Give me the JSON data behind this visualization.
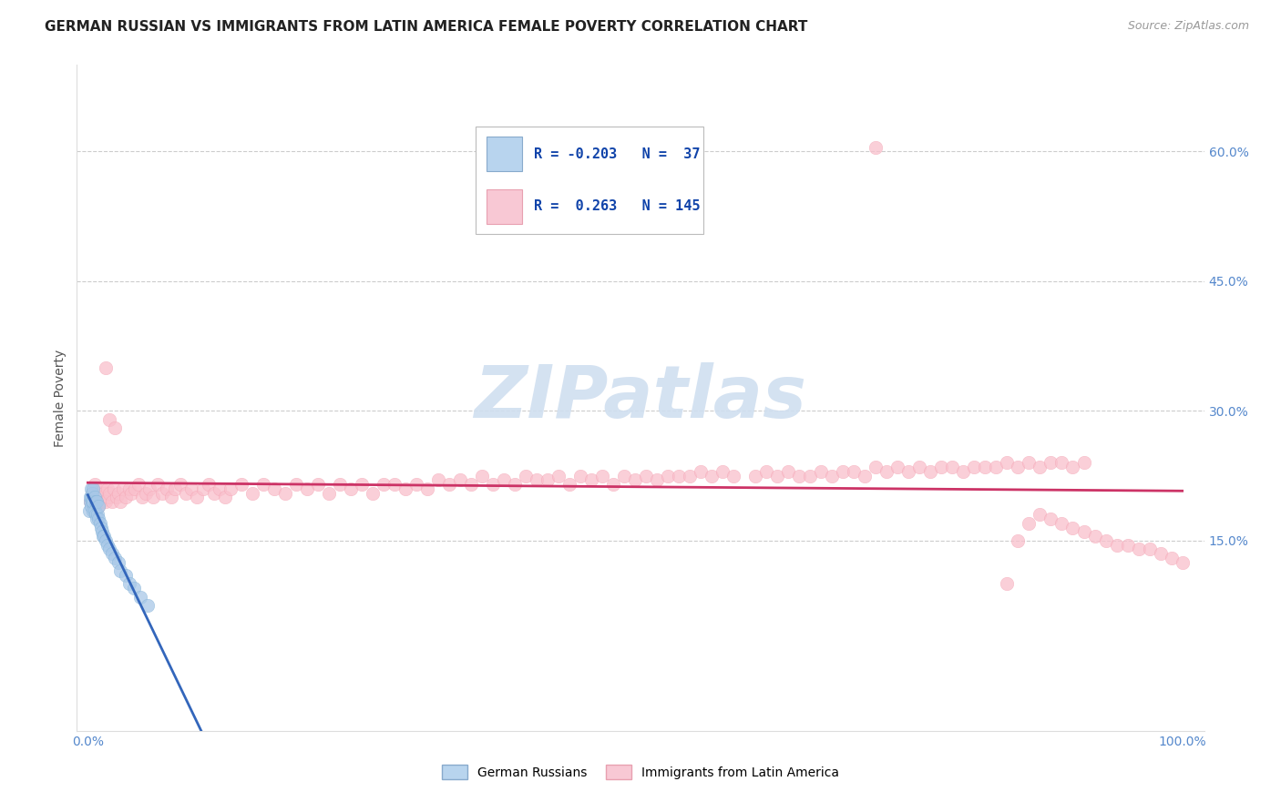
{
  "title": "GERMAN RUSSIAN VS IMMIGRANTS FROM LATIN AMERICA FEMALE POVERTY CORRELATION CHART",
  "source": "Source: ZipAtlas.com",
  "ylabel": "Female Poverty",
  "R_blue": -0.203,
  "N_blue": 37,
  "R_pink": 0.263,
  "N_pink": 145,
  "blue_color": "#7bafd4",
  "pink_color": "#f4a0b0",
  "blue_scatter_fill": "#a8c8e8",
  "pink_scatter_fill": "#f9c0cc",
  "trend_blue_solid": "#3366bb",
  "trend_blue_dash": "#88aadd",
  "trend_pink": "#cc3366",
  "legend_blue_fill": "#b8d4ee",
  "legend_pink_fill": "#f8c8d4",
  "legend_blue_edge": "#88aacc",
  "legend_pink_edge": "#e8a0b0",
  "grid_color": "#cccccc",
  "ytick_color": "#5588cc",
  "xtick_color": "#5588cc",
  "background_color": "#ffffff",
  "legend_blue_label": "German Russians",
  "legend_pink_label": "Immigrants from Latin America",
  "watermark_color": "#d0dff0",
  "blue_x": [
    0.001,
    0.002,
    0.002,
    0.003,
    0.003,
    0.003,
    0.004,
    0.004,
    0.005,
    0.005,
    0.005,
    0.006,
    0.006,
    0.007,
    0.007,
    0.008,
    0.008,
    0.009,
    0.01,
    0.01,
    0.011,
    0.012,
    0.013,
    0.014,
    0.015,
    0.016,
    0.018,
    0.02,
    0.022,
    0.025,
    0.028,
    0.03,
    0.035,
    0.038,
    0.042,
    0.048,
    0.055
  ],
  "blue_y": [
    0.185,
    0.195,
    0.2,
    0.19,
    0.2,
    0.21,
    0.195,
    0.205,
    0.185,
    0.195,
    0.21,
    0.185,
    0.2,
    0.18,
    0.195,
    0.175,
    0.195,
    0.18,
    0.175,
    0.19,
    0.17,
    0.165,
    0.16,
    0.155,
    0.155,
    0.15,
    0.145,
    0.14,
    0.135,
    0.13,
    0.125,
    0.115,
    0.11,
    0.1,
    0.095,
    0.085,
    0.075
  ],
  "pink_x": [
    0.002,
    0.004,
    0.005,
    0.006,
    0.007,
    0.008,
    0.009,
    0.01,
    0.011,
    0.012,
    0.013,
    0.014,
    0.015,
    0.016,
    0.018,
    0.019,
    0.02,
    0.022,
    0.024,
    0.026,
    0.028,
    0.03,
    0.032,
    0.035,
    0.038,
    0.04,
    0.043,
    0.046,
    0.05,
    0.053,
    0.056,
    0.06,
    0.064,
    0.068,
    0.072,
    0.076,
    0.08,
    0.085,
    0.09,
    0.095,
    0.1,
    0.105,
    0.11,
    0.115,
    0.12,
    0.125,
    0.13,
    0.14,
    0.15,
    0.16,
    0.17,
    0.18,
    0.19,
    0.2,
    0.21,
    0.22,
    0.23,
    0.24,
    0.25,
    0.26,
    0.27,
    0.28,
    0.29,
    0.3,
    0.31,
    0.32,
    0.33,
    0.34,
    0.35,
    0.36,
    0.37,
    0.38,
    0.39,
    0.4,
    0.41,
    0.42,
    0.43,
    0.44,
    0.45,
    0.46,
    0.47,
    0.48,
    0.49,
    0.5,
    0.51,
    0.52,
    0.53,
    0.54,
    0.55,
    0.56,
    0.57,
    0.58,
    0.59,
    0.61,
    0.62,
    0.63,
    0.64,
    0.65,
    0.66,
    0.67,
    0.68,
    0.69,
    0.7,
    0.71,
    0.72,
    0.73,
    0.74,
    0.75,
    0.76,
    0.77,
    0.78,
    0.79,
    0.8,
    0.81,
    0.82,
    0.83,
    0.84,
    0.85,
    0.86,
    0.87,
    0.88,
    0.89,
    0.9,
    0.91,
    0.84,
    0.85,
    0.86,
    0.87,
    0.88,
    0.89,
    0.9,
    0.91,
    0.92,
    0.93,
    0.94,
    0.95,
    0.96,
    0.97,
    0.98,
    0.99,
    1.0,
    0.72,
    0.016,
    0.02,
    0.025
  ],
  "pink_y": [
    0.195,
    0.205,
    0.2,
    0.215,
    0.2,
    0.195,
    0.205,
    0.19,
    0.2,
    0.195,
    0.21,
    0.2,
    0.205,
    0.195,
    0.21,
    0.2,
    0.205,
    0.195,
    0.21,
    0.2,
    0.205,
    0.195,
    0.21,
    0.2,
    0.21,
    0.205,
    0.21,
    0.215,
    0.2,
    0.205,
    0.21,
    0.2,
    0.215,
    0.205,
    0.21,
    0.2,
    0.21,
    0.215,
    0.205,
    0.21,
    0.2,
    0.21,
    0.215,
    0.205,
    0.21,
    0.2,
    0.21,
    0.215,
    0.205,
    0.215,
    0.21,
    0.205,
    0.215,
    0.21,
    0.215,
    0.205,
    0.215,
    0.21,
    0.215,
    0.205,
    0.215,
    0.215,
    0.21,
    0.215,
    0.21,
    0.22,
    0.215,
    0.22,
    0.215,
    0.225,
    0.215,
    0.22,
    0.215,
    0.225,
    0.22,
    0.22,
    0.225,
    0.215,
    0.225,
    0.22,
    0.225,
    0.215,
    0.225,
    0.22,
    0.225,
    0.22,
    0.225,
    0.225,
    0.225,
    0.23,
    0.225,
    0.23,
    0.225,
    0.225,
    0.23,
    0.225,
    0.23,
    0.225,
    0.225,
    0.23,
    0.225,
    0.23,
    0.23,
    0.225,
    0.235,
    0.23,
    0.235,
    0.23,
    0.235,
    0.23,
    0.235,
    0.235,
    0.23,
    0.235,
    0.235,
    0.235,
    0.24,
    0.235,
    0.24,
    0.235,
    0.24,
    0.24,
    0.235,
    0.24,
    0.1,
    0.15,
    0.17,
    0.18,
    0.175,
    0.17,
    0.165,
    0.16,
    0.155,
    0.15,
    0.145,
    0.145,
    0.14,
    0.14,
    0.135,
    0.13,
    0.125,
    0.605,
    0.35,
    0.29,
    0.28
  ]
}
